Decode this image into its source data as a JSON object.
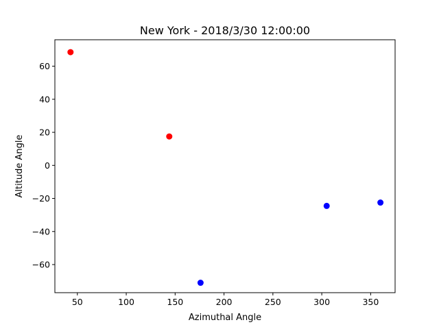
{
  "chart_data": {
    "type": "scatter",
    "title": "New York - 2018/3/30 12:00:00",
    "xlabel": "Azimuthal Angle",
    "ylabel": "Altitude Angle",
    "xlim": [
      27,
      375
    ],
    "ylim": [
      -77,
      76
    ],
    "xticks": [
      50,
      100,
      150,
      200,
      250,
      300,
      350
    ],
    "yticks": [
      -60,
      -40,
      -20,
      0,
      20,
      40,
      60
    ],
    "grid": false,
    "legend": "none",
    "series": [
      {
        "color": "#ff0000",
        "points": [
          {
            "x": 43,
            "y": 68.5
          },
          {
            "x": 144,
            "y": 17.5
          }
        ]
      },
      {
        "color": "#0000ff",
        "points": [
          {
            "x": 176,
            "y": -71
          },
          {
            "x": 305,
            "y": -24.5
          },
          {
            "x": 360,
            "y": -22.5
          }
        ]
      }
    ]
  }
}
